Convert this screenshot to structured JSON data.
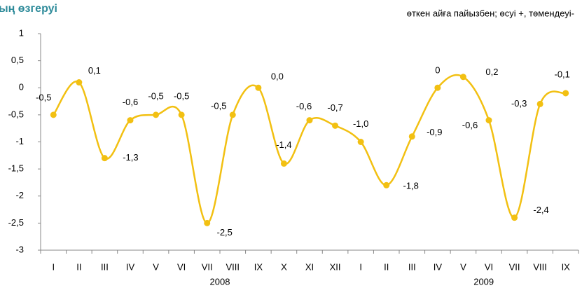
{
  "chart_data": {
    "type": "line",
    "title": "ың өзгеруі",
    "subtitle": "өткен айға пайызбен; өсуі +, төмендеуі-",
    "categories": [
      "I",
      "II",
      "III",
      "IV",
      "V",
      "VI",
      "VII",
      "VIII",
      "IX",
      "X",
      "XI",
      "XII",
      "I",
      "II",
      "III",
      "IV",
      "V",
      "VI",
      "VII",
      "VIII",
      "IX"
    ],
    "year_labels": [
      "2008",
      "2009"
    ],
    "series": [
      {
        "name": null,
        "color": "#f2c012",
        "values": [
          -0.5,
          0.1,
          -1.3,
          -0.6,
          -0.5,
          -0.5,
          -2.5,
          -0.5,
          0.0,
          -1.4,
          -0.6,
          -0.7,
          -1.0,
          -1.8,
          -0.9,
          0,
          0.2,
          -0.6,
          -2.4,
          -0.3,
          -0.1
        ],
        "value_labels": [
          "-0,5",
          "0,1",
          "-1,3",
          "-0,6",
          "-0,5",
          "-0,5",
          "-2,5",
          "-0,5",
          "0,0",
          "-1,4",
          "-0,6",
          "-0,7",
          "-1,0",
          "-1,8",
          "-0,9",
          "0",
          "0,2",
          "-0,6",
          "-2,4",
          "-0,3",
          "-0,1"
        ]
      }
    ],
    "ylim": [
      -3,
      1
    ],
    "yticks": [
      1,
      {
        "value": 0.5,
        "label": "0,5"
      },
      0,
      {
        "value": -0.5,
        "label": "-0,5"
      },
      -1,
      {
        "value": -1.5,
        "label": "-1,5"
      },
      -2,
      {
        "value": -2.5,
        "label": "-2,5"
      },
      -3
    ],
    "grid": false
  }
}
